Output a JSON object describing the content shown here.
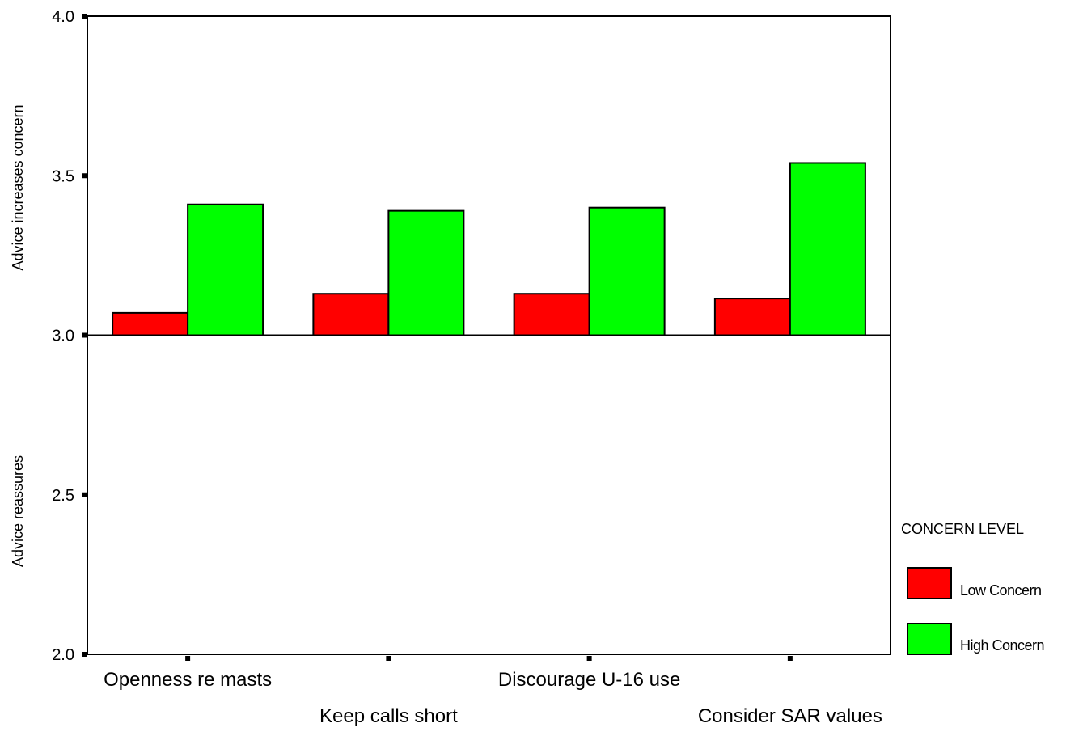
{
  "chart_data": {
    "type": "bar",
    "categories": [
      "Openness re masts",
      "Keep calls short",
      "Discourage U-16 use",
      "Consider SAR values"
    ],
    "series": [
      {
        "name": "Low Concern",
        "values": [
          3.07,
          3.13,
          3.13,
          3.115
        ],
        "color": "#ff0000"
      },
      {
        "name": "High Concern",
        "values": [
          3.41,
          3.39,
          3.4,
          3.54
        ],
        "color": "#00ff00"
      }
    ],
    "baseline": 3.0,
    "ylim": [
      2.0,
      4.0
    ],
    "yticks": [
      "2.0",
      "2.5",
      "3.0",
      "3.5",
      "4.0"
    ],
    "ylabel_upper": "Advice increases concern",
    "ylabel_lower": "Advice reassures",
    "legend_title": "CONCERN LEVEL",
    "legend_position": "right",
    "grid": false
  }
}
